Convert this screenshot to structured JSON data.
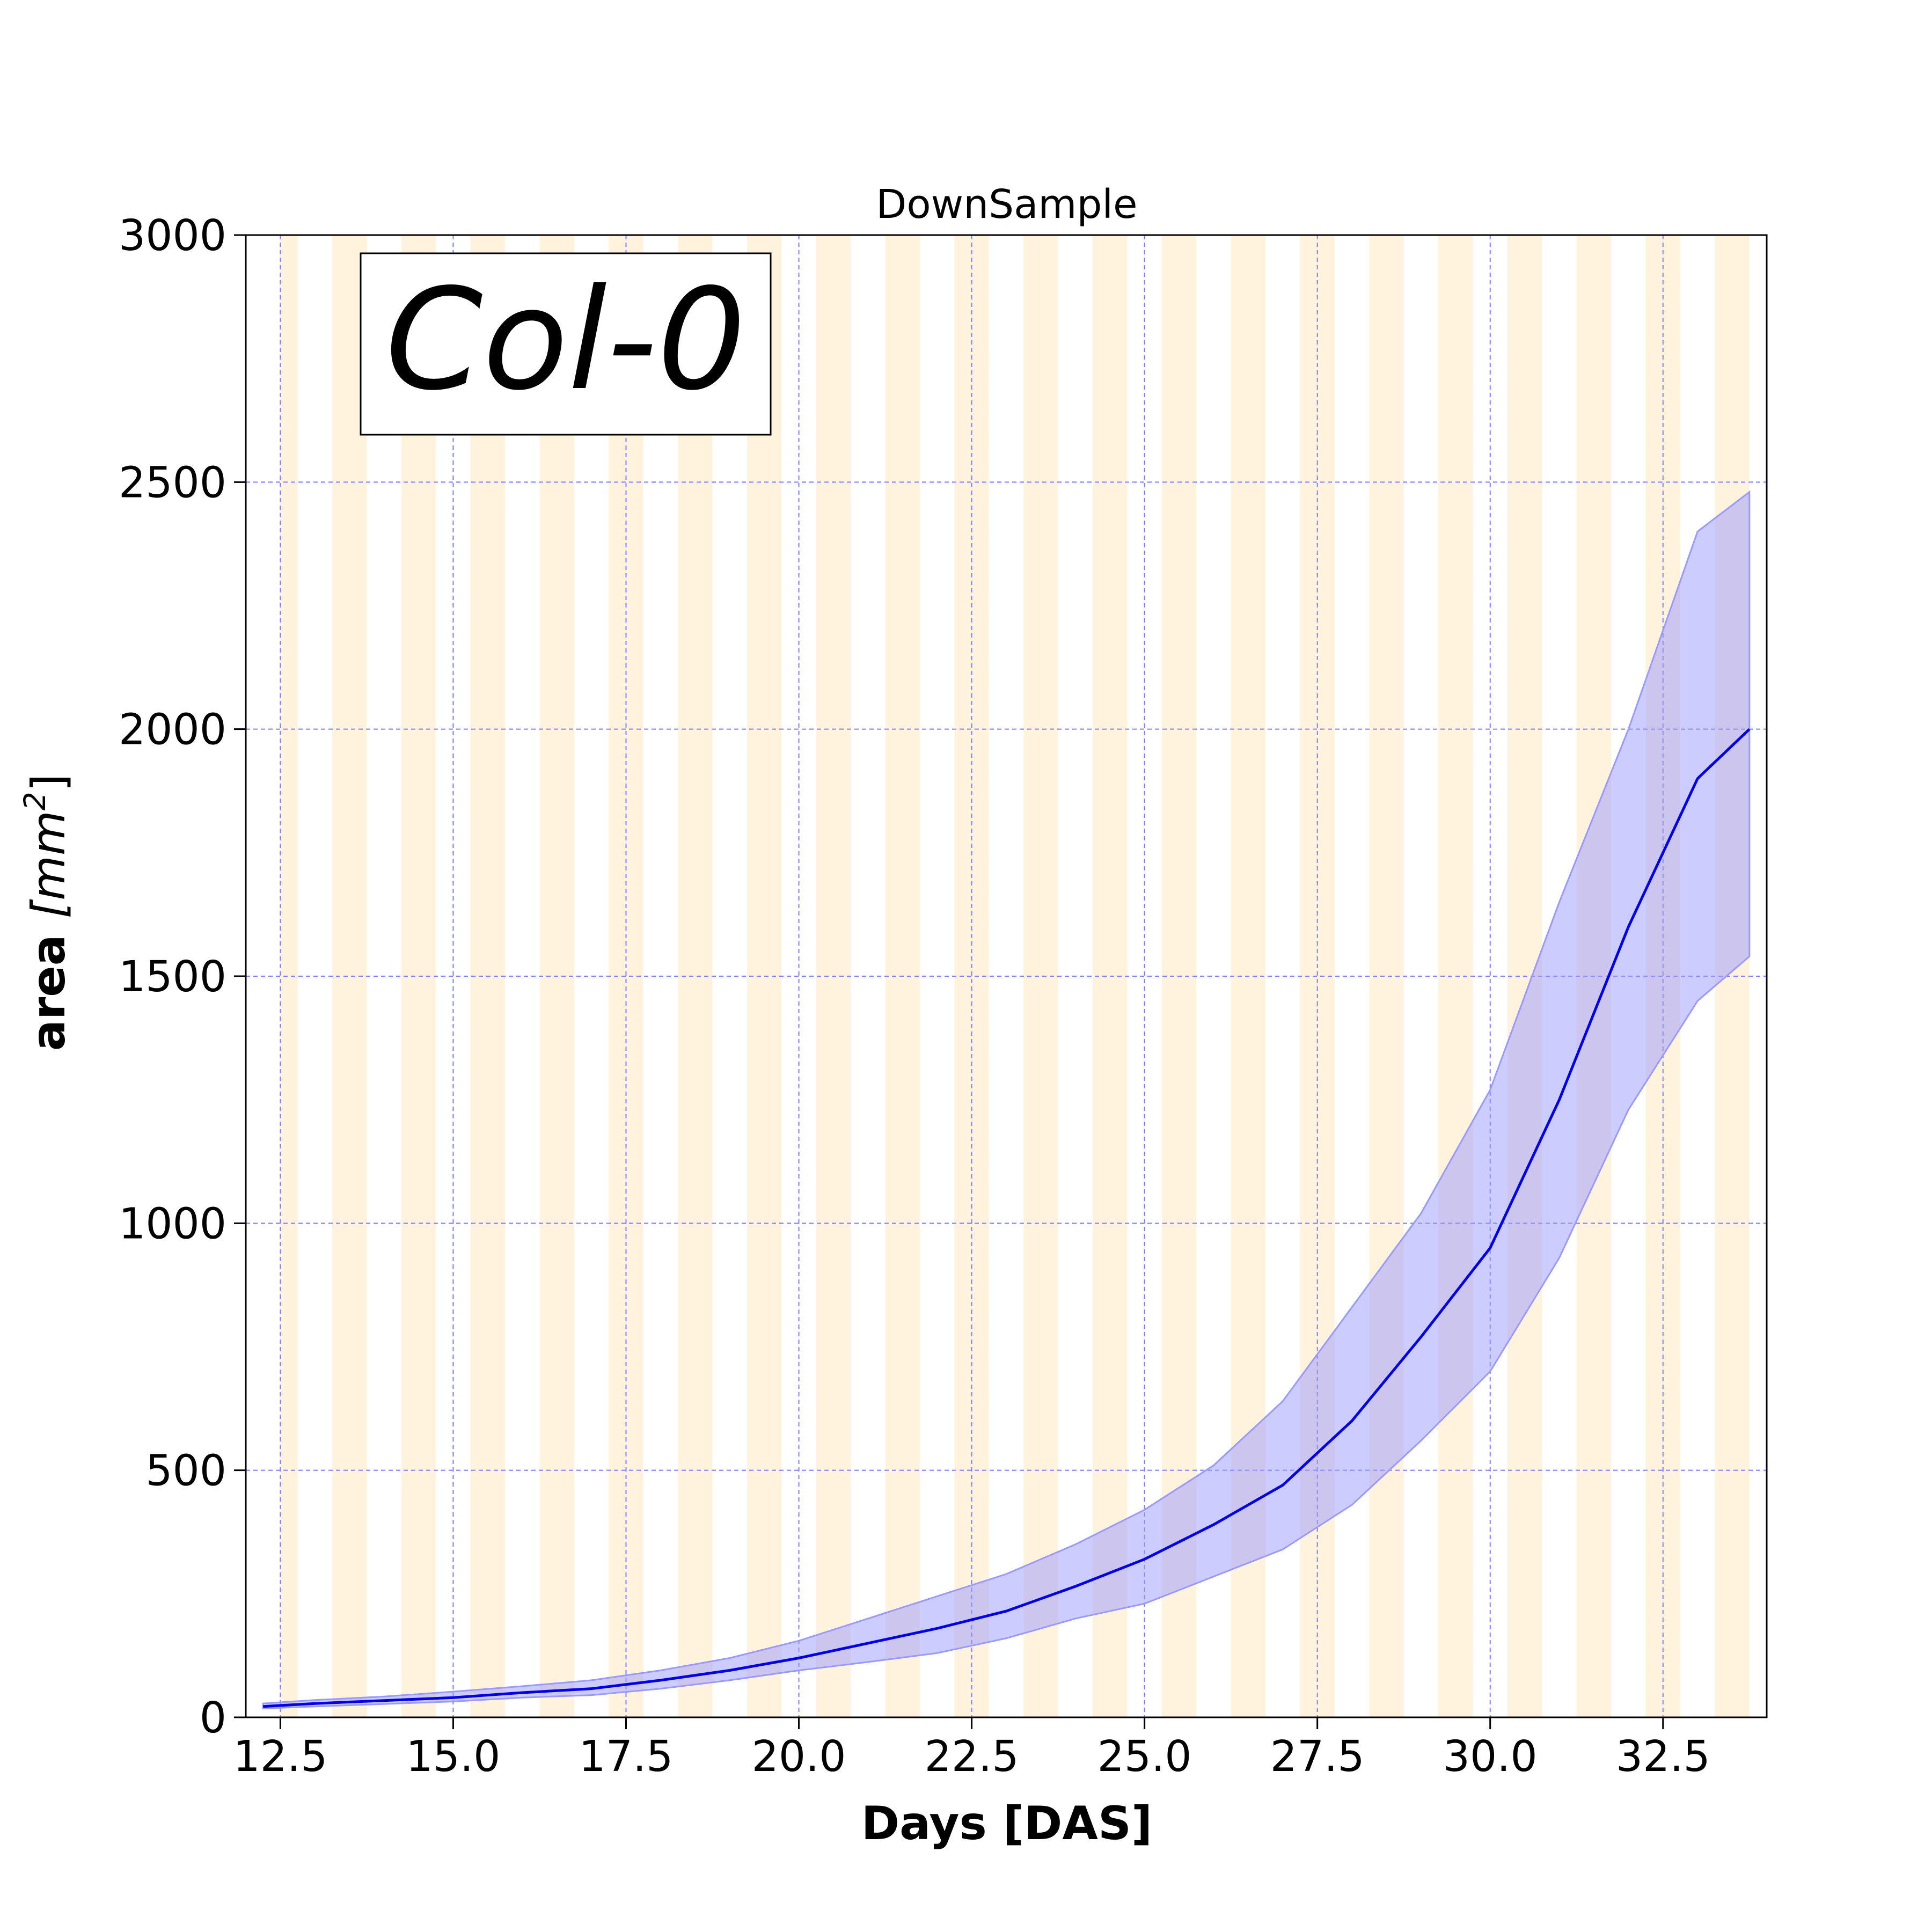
{
  "chart_data": {
    "type": "line",
    "title": "DownSample",
    "xlabel": "Days [DAS]",
    "ylabel_main": "area ",
    "ylabel_unit": "[mm",
    "ylabel_sup": "2",
    "ylabel_close": "]",
    "annotation": "Col-0",
    "xlim": [
      12.0,
      34.0
    ],
    "ylim": [
      0,
      3000
    ],
    "x_ticks": [
      12.5,
      15.0,
      17.5,
      20.0,
      22.5,
      25.0,
      27.5,
      30.0,
      32.5
    ],
    "x_tick_labels": [
      "12.5",
      "15.0",
      "17.5",
      "20.0",
      "22.5",
      "25.0",
      "27.5",
      "30.0",
      "32.5"
    ],
    "y_ticks": [
      0,
      500,
      1000,
      1500,
      2000,
      2500,
      3000
    ],
    "y_tick_labels": [
      "0",
      "500",
      "1000",
      "1500",
      "2000",
      "2500",
      "3000"
    ],
    "grid": true,
    "night_bands": [
      [
        12.5,
        12.75
      ],
      [
        13.25,
        13.75
      ],
      [
        14.25,
        14.75
      ],
      [
        15.25,
        15.75
      ],
      [
        16.25,
        16.75
      ],
      [
        17.25,
        17.75
      ],
      [
        18.25,
        18.75
      ],
      [
        19.25,
        19.75
      ],
      [
        20.25,
        20.75
      ],
      [
        21.25,
        21.75
      ],
      [
        22.25,
        22.75
      ],
      [
        23.25,
        23.75
      ],
      [
        24.25,
        24.75
      ],
      [
        25.25,
        25.75
      ],
      [
        26.25,
        26.75
      ],
      [
        27.25,
        27.75
      ],
      [
        28.25,
        28.75
      ],
      [
        29.25,
        29.75
      ],
      [
        30.25,
        30.75
      ],
      [
        31.25,
        31.75
      ],
      [
        32.25,
        32.75
      ],
      [
        33.25,
        33.75
      ]
    ],
    "series": [
      {
        "x": [
          12.25,
          13,
          14,
          15,
          16,
          17,
          18,
          19,
          20,
          21,
          22,
          23,
          24,
          25,
          26,
          27,
          28,
          29,
          30,
          31,
          32,
          33,
          33.75
        ],
        "mean": [
          22,
          28,
          34,
          40,
          50,
          58,
          75,
          95,
          120,
          150,
          180,
          215,
          265,
          320,
          390,
          470,
          600,
          770,
          950,
          1250,
          1600,
          1900,
          2000
        ],
        "lower": [
          18,
          22,
          27,
          32,
          40,
          45,
          58,
          75,
          95,
          112,
          130,
          160,
          200,
          230,
          285,
          340,
          430,
          560,
          700,
          930,
          1230,
          1450,
          1540
        ],
        "upper": [
          28,
          35,
          42,
          52,
          63,
          75,
          95,
          120,
          155,
          200,
          245,
          290,
          350,
          420,
          510,
          640,
          830,
          1020,
          1270,
          1650,
          2000,
          2400,
          2480
        ]
      }
    ],
    "colors": {
      "line": "#0000e6",
      "band": "#9999ff",
      "night": "#fff3dd",
      "grid": "#7b7bff",
      "frame": "#000000"
    }
  }
}
